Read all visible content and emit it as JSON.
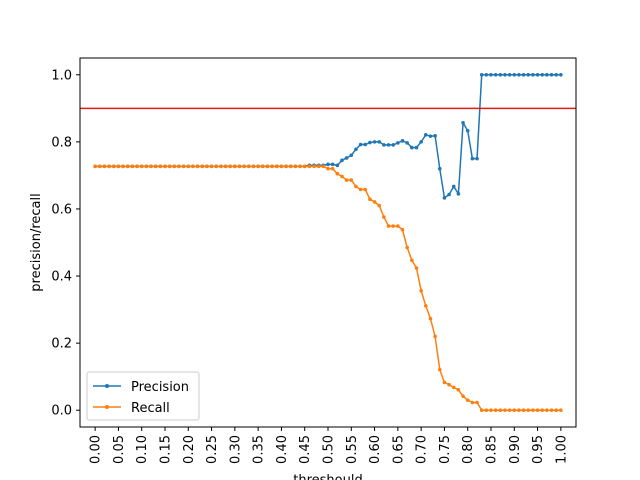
{
  "chart_data": {
    "type": "line",
    "title": "",
    "xlabel": "threshould",
    "ylabel": "precision/recall",
    "xlim": [
      -0.0325,
      1.0325
    ],
    "ylim": [
      -0.05,
      1.05
    ],
    "x_ticks": [
      "0.00",
      "0.05",
      "0.10",
      "0.15",
      "0.20",
      "0.25",
      "0.30",
      "0.35",
      "0.40",
      "0.45",
      "0.50",
      "0.55",
      "0.60",
      "0.65",
      "0.70",
      "0.75",
      "0.80",
      "0.85",
      "0.90",
      "0.95",
      "1.00"
    ],
    "y_ticks": [
      "0.0",
      "0.2",
      "0.4",
      "0.6",
      "0.8",
      "1.0"
    ],
    "hline": {
      "y": 0.9,
      "color": "#e41a1c"
    },
    "legend_position": "lower-left",
    "x": [
      0.0,
      0.01,
      0.02,
      0.03,
      0.04,
      0.05,
      0.06,
      0.07,
      0.08,
      0.09,
      0.1,
      0.11,
      0.12,
      0.13,
      0.14,
      0.15,
      0.16,
      0.17,
      0.18,
      0.19,
      0.2,
      0.21,
      0.22,
      0.23,
      0.24,
      0.25,
      0.26,
      0.27,
      0.28,
      0.29,
      0.3,
      0.31,
      0.32,
      0.33,
      0.34,
      0.35,
      0.36,
      0.37,
      0.38,
      0.39,
      0.4,
      0.41,
      0.42,
      0.43,
      0.44,
      0.45,
      0.46,
      0.47,
      0.48,
      0.49,
      0.5,
      0.51,
      0.52,
      0.53,
      0.54,
      0.55,
      0.56,
      0.57,
      0.58,
      0.59,
      0.6,
      0.61,
      0.62,
      0.63,
      0.64,
      0.65,
      0.66,
      0.67,
      0.68,
      0.69,
      0.7,
      0.71,
      0.72,
      0.73,
      0.74,
      0.75,
      0.76,
      0.77,
      0.78,
      0.79,
      0.8,
      0.81,
      0.82,
      0.83,
      0.84,
      0.85,
      0.86,
      0.87,
      0.88,
      0.89,
      0.9,
      0.91,
      0.92,
      0.93,
      0.94,
      0.95,
      0.96,
      0.97,
      0.98,
      0.99,
      1.0
    ],
    "series": [
      {
        "name": "Precision",
        "color": "#1f77b4",
        "values": [
          0.727,
          0.727,
          0.727,
          0.727,
          0.727,
          0.727,
          0.727,
          0.727,
          0.727,
          0.727,
          0.727,
          0.727,
          0.727,
          0.727,
          0.727,
          0.727,
          0.727,
          0.727,
          0.727,
          0.727,
          0.727,
          0.727,
          0.727,
          0.727,
          0.727,
          0.727,
          0.727,
          0.727,
          0.727,
          0.727,
          0.727,
          0.727,
          0.727,
          0.727,
          0.727,
          0.727,
          0.727,
          0.727,
          0.727,
          0.727,
          0.727,
          0.727,
          0.727,
          0.727,
          0.727,
          0.727,
          0.73,
          0.73,
          0.73,
          0.73,
          0.733,
          0.733,
          0.73,
          0.745,
          0.752,
          0.76,
          0.778,
          0.792,
          0.792,
          0.798,
          0.8,
          0.8,
          0.791,
          0.791,
          0.791,
          0.797,
          0.803,
          0.797,
          0.783,
          0.783,
          0.8,
          0.821,
          0.817,
          0.818,
          0.72,
          0.633,
          0.643,
          0.667,
          0.645,
          0.857,
          0.833,
          0.75,
          0.75,
          1.0,
          1.0,
          1.0,
          1.0,
          1.0,
          1.0,
          1.0,
          1.0,
          1.0,
          1.0,
          1.0,
          1.0,
          1.0,
          1.0,
          1.0,
          1.0,
          1.0,
          1.0
        ]
      },
      {
        "name": "Recall",
        "color": "#ff7f0e",
        "values": [
          0.727,
          0.727,
          0.727,
          0.727,
          0.727,
          0.727,
          0.727,
          0.727,
          0.727,
          0.727,
          0.727,
          0.727,
          0.727,
          0.727,
          0.727,
          0.727,
          0.727,
          0.727,
          0.727,
          0.727,
          0.727,
          0.727,
          0.727,
          0.727,
          0.727,
          0.727,
          0.727,
          0.727,
          0.727,
          0.727,
          0.727,
          0.727,
          0.727,
          0.727,
          0.727,
          0.727,
          0.727,
          0.727,
          0.727,
          0.727,
          0.727,
          0.727,
          0.727,
          0.727,
          0.727,
          0.727,
          0.727,
          0.727,
          0.727,
          0.727,
          0.72,
          0.72,
          0.705,
          0.697,
          0.686,
          0.686,
          0.667,
          0.658,
          0.658,
          0.629,
          0.621,
          0.61,
          0.576,
          0.549,
          0.549,
          0.549,
          0.538,
          0.485,
          0.447,
          0.424,
          0.356,
          0.311,
          0.273,
          0.22,
          0.121,
          0.083,
          0.076,
          0.068,
          0.061,
          0.042,
          0.03,
          0.023,
          0.023,
          0.0,
          0.0,
          0.0,
          0.0,
          0.0,
          0.0,
          0.0,
          0.0,
          0.0,
          0.0,
          0.0,
          0.0,
          0.0,
          0.0,
          0.0,
          0.0,
          0.0,
          0.0
        ]
      }
    ]
  }
}
